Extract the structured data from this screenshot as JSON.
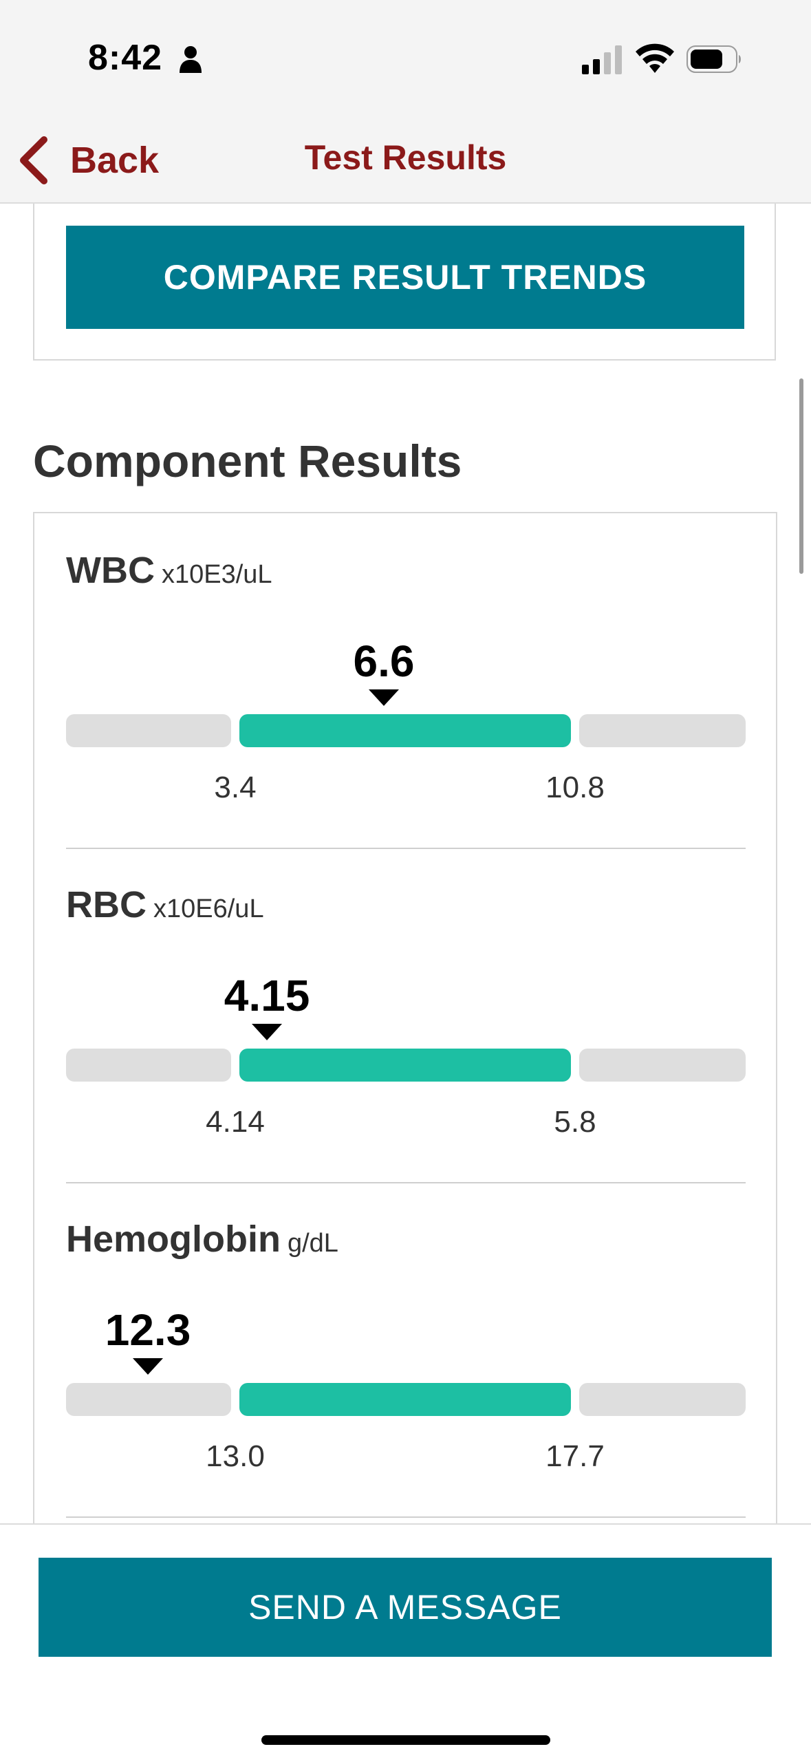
{
  "status_bar": {
    "time": "8:42",
    "icons": [
      "person-icon",
      "signal-icon",
      "wifi-icon",
      "battery-icon"
    ]
  },
  "nav": {
    "back_label": "Back",
    "title": "Test Results",
    "accent_color": "#8b1a1a"
  },
  "compare": {
    "label": "COMPARE RESULT TRENDS"
  },
  "section": {
    "title": "Component Results"
  },
  "results": [
    {
      "name": "WBC",
      "unit": "x10E3/uL",
      "value": "6.6",
      "low": "3.4",
      "high": "10.8"
    },
    {
      "name": "RBC",
      "unit": "x10E6/uL",
      "value": "4.15",
      "low": "4.14",
      "high": "5.8"
    },
    {
      "name": "Hemoglobin",
      "unit": "g/dL",
      "value": "12.3",
      "low": "13.0",
      "high": "17.7"
    }
  ],
  "footer": {
    "message_label": "SEND A MESSAGE"
  },
  "colors": {
    "primary_button": "#007b8f",
    "normal_range": "#1dbfa3",
    "out_of_range": "#dedede"
  }
}
